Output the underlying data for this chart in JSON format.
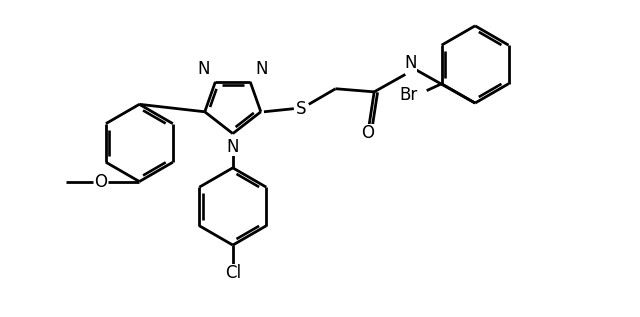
{
  "bg": "#ffffff",
  "lc": "#000000",
  "lw": 2.0,
  "dbo": 0.055,
  "fs": 12,
  "figsize": [
    6.4,
    3.17
  ],
  "dpi": 100,
  "xlim": [
    0,
    10
  ],
  "ylim": [
    0,
    5
  ]
}
